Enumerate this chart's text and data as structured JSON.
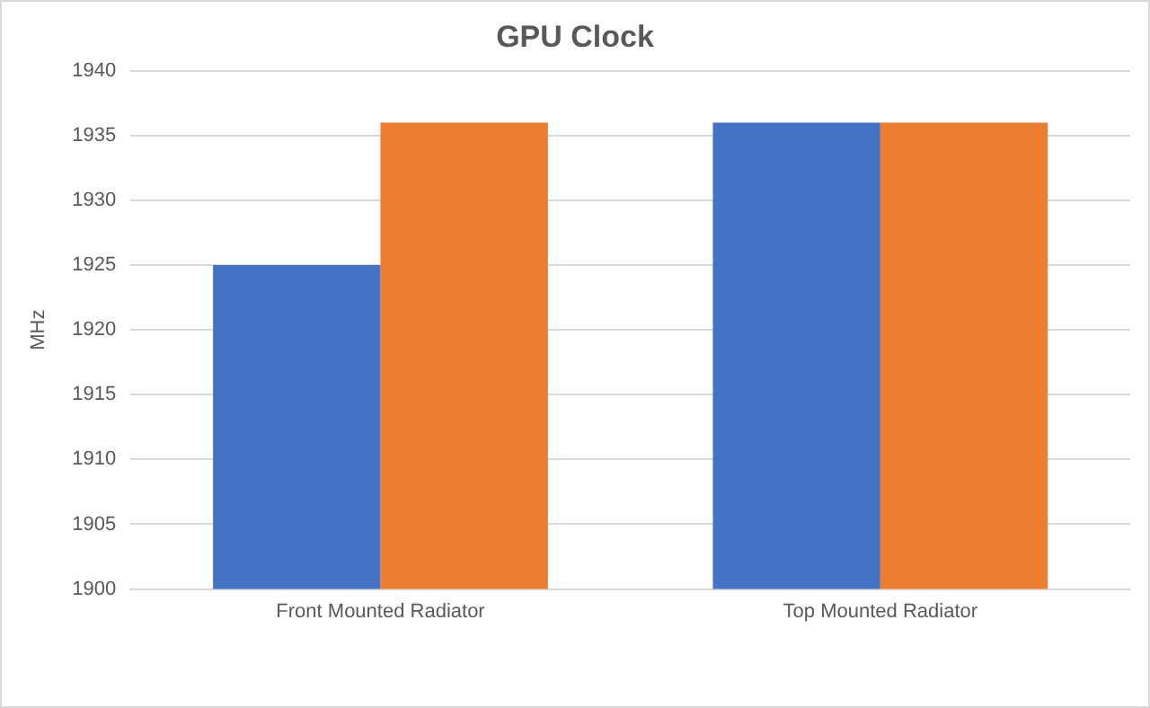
{
  "chart_data": {
    "type": "bar",
    "title": "GPU Clock",
    "ylabel": "MHz",
    "categories": [
      "Front Mounted Radiator",
      "Top Mounted Radiator"
    ],
    "series": [
      {
        "color": "#4472c4",
        "values": [
          1925,
          1936
        ]
      },
      {
        "color": "#ed7d31",
        "values": [
          1936,
          1936
        ]
      }
    ],
    "ylim": [
      1900,
      1940
    ],
    "yticks": [
      1900,
      1905,
      1910,
      1915,
      1920,
      1925,
      1930,
      1935,
      1940
    ],
    "grid": "y",
    "legend": false
  }
}
